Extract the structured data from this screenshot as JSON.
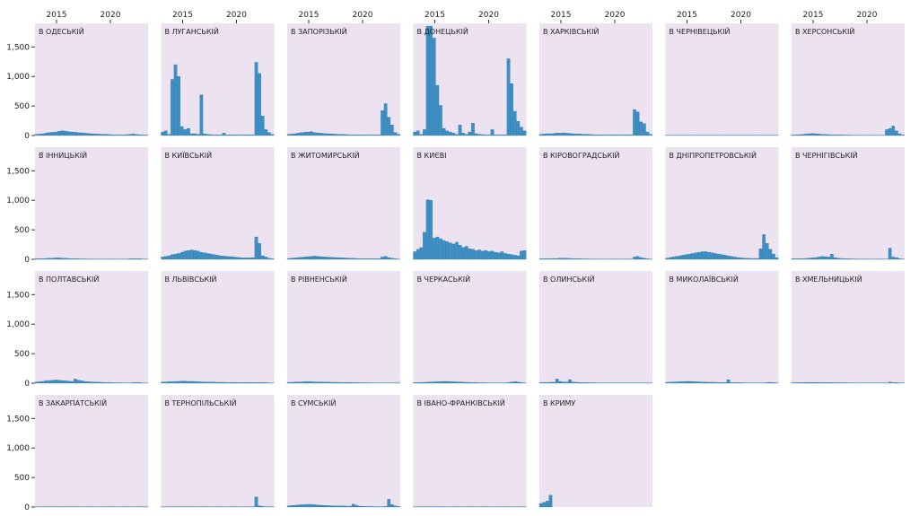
{
  "colors": {
    "panel_bg": "#ece2f0",
    "bar": "#3d8fc4",
    "bar_edge": "#1f6fa6",
    "axis": "#333333",
    "text": "#222222"
  },
  "chart_data": {
    "type": "bar",
    "layout": "small-multiples",
    "title": "",
    "xlabel": "",
    "ylabel": "",
    "x_ticks": [
      2015,
      2020
    ],
    "x_range": [
      2013,
      2023.5
    ],
    "y_ticks": [
      0,
      500,
      1000,
      1500
    ],
    "y_tick_labels": [
      "0",
      "500",
      "1,000",
      "1,500"
    ],
    "ylim": [
      0,
      1900
    ],
    "grid": false,
    "panels": [
      {
        "name": "В ОДЕСЬКІЙ",
        "values": [
          20,
          25,
          30,
          40,
          50,
          55,
          60,
          70,
          80,
          75,
          65,
          60,
          55,
          50,
          45,
          40,
          35,
          30,
          28,
          25,
          22,
          20,
          18,
          15,
          12,
          10,
          10,
          12,
          15,
          20,
          25,
          18,
          12,
          10,
          8
        ]
      },
      {
        "name": "В ЛУГАНСЬКІЙ",
        "values": [
          60,
          80,
          20,
          950,
          1200,
          1000,
          150,
          100,
          120,
          30,
          30,
          20,
          690,
          30,
          20,
          15,
          10,
          10,
          10,
          40,
          10,
          10,
          10,
          10,
          10,
          10,
          10,
          10,
          10,
          1240,
          1050,
          330,
          100,
          50,
          20
        ]
      },
      {
        "name": "В ЗАПОРІЗЬКІЙ",
        "values": [
          20,
          25,
          30,
          40,
          50,
          55,
          60,
          65,
          50,
          45,
          40,
          35,
          30,
          28,
          25,
          22,
          20,
          18,
          15,
          12,
          10,
          10,
          10,
          10,
          10,
          10,
          10,
          10,
          10,
          420,
          540,
          310,
          180,
          50,
          20
        ]
      },
      {
        "name": "В ДОНЕЦЬКІЙ",
        "values": [
          60,
          80,
          20,
          100,
          1850,
          1850,
          1650,
          850,
          510,
          120,
          80,
          60,
          40,
          20,
          180,
          40,
          20,
          60,
          210,
          30,
          20,
          15,
          10,
          10,
          100,
          10,
          10,
          10,
          10,
          1300,
          880,
          410,
          240,
          140,
          80
        ]
      },
      {
        "name": "В ХАРКІВСЬКІЙ",
        "values": [
          20,
          25,
          30,
          30,
          35,
          40,
          40,
          45,
          40,
          35,
          30,
          28,
          25,
          22,
          20,
          18,
          15,
          12,
          10,
          10,
          10,
          10,
          10,
          10,
          10,
          10,
          10,
          10,
          10,
          440,
          400,
          230,
          200,
          60,
          20
        ]
      },
      {
        "name": "В ЧЕРНІВЕЦЬКІЙ",
        "values": [
          5,
          5,
          5,
          5,
          5,
          5,
          5,
          5,
          5,
          5,
          5,
          5,
          5,
          5,
          5,
          5,
          5,
          5,
          5,
          5,
          5,
          5,
          5,
          5,
          5,
          5,
          5,
          5,
          5,
          5,
          5,
          5,
          5,
          5,
          5
        ]
      },
      {
        "name": "В ХЕРСОНСЬКІЙ",
        "values": [
          10,
          12,
          15,
          20,
          25,
          30,
          35,
          30,
          25,
          20,
          18,
          15,
          12,
          10,
          10,
          10,
          8,
          8,
          6,
          6,
          5,
          5,
          5,
          5,
          5,
          5,
          5,
          5,
          5,
          100,
          120,
          160,
          80,
          30,
          10
        ]
      },
      {
        "name": "В ІННИЦЬКІЙ",
        "values": [
          10,
          10,
          12,
          15,
          20,
          20,
          25,
          25,
          20,
          18,
          15,
          12,
          10,
          10,
          8,
          8,
          6,
          6,
          5,
          5,
          5,
          5,
          5,
          5,
          5,
          5,
          5,
          5,
          5,
          10,
          10,
          10,
          10,
          5,
          5
        ]
      },
      {
        "name": "В КИЇВСЬКІЙ",
        "values": [
          40,
          50,
          60,
          80,
          90,
          100,
          120,
          140,
          150,
          160,
          150,
          140,
          120,
          110,
          100,
          90,
          80,
          70,
          60,
          55,
          50,
          45,
          40,
          35,
          30,
          25,
          25,
          25,
          30,
          380,
          270,
          60,
          40,
          20,
          10
        ]
      },
      {
        "name": "В ЖИТОМИРСЬКІЙ",
        "values": [
          15,
          20,
          25,
          30,
          35,
          40,
          45,
          50,
          55,
          50,
          45,
          40,
          38,
          35,
          32,
          30,
          28,
          25,
          22,
          20,
          18,
          15,
          12,
          10,
          10,
          10,
          10,
          10,
          10,
          40,
          50,
          30,
          20,
          10,
          5
        ]
      },
      {
        "name": "В КИЄВІ",
        "values": [
          130,
          170,
          200,
          460,
          1010,
          1000,
          360,
          380,
          350,
          320,
          300,
          280,
          260,
          290,
          240,
          200,
          220,
          180,
          170,
          150,
          160,
          140,
          150,
          130,
          140,
          120,
          110,
          130,
          100,
          90,
          80,
          70,
          60,
          140,
          150
        ]
      },
      {
        "name": "В КІРОВОГРАДСЬКІЙ",
        "values": [
          10,
          10,
          12,
          12,
          15,
          15,
          18,
          20,
          18,
          15,
          12,
          10,
          10,
          8,
          8,
          6,
          6,
          5,
          5,
          5,
          5,
          5,
          5,
          5,
          5,
          5,
          5,
          5,
          5,
          40,
          50,
          30,
          20,
          10,
          5
        ]
      },
      {
        "name": "В ДНІПРОПЕТРОВСЬКІЙ",
        "values": [
          20,
          30,
          40,
          50,
          60,
          70,
          80,
          90,
          100,
          110,
          120,
          130,
          130,
          120,
          110,
          100,
          90,
          80,
          70,
          60,
          50,
          40,
          30,
          25,
          20,
          18,
          15,
          15,
          15,
          180,
          420,
          270,
          170,
          90,
          30
        ]
      },
      {
        "name": "В ЧЕРНІГІВСЬКІЙ",
        "values": [
          10,
          10,
          12,
          12,
          15,
          20,
          25,
          30,
          40,
          50,
          45,
          40,
          90,
          30,
          20,
          15,
          10,
          10,
          8,
          8,
          6,
          5,
          5,
          5,
          5,
          5,
          5,
          5,
          5,
          5,
          190,
          40,
          30,
          15,
          5
        ]
      },
      {
        "name": "В ПОЛТАВСЬКІЙ",
        "values": [
          20,
          25,
          30,
          40,
          45,
          50,
          55,
          50,
          45,
          40,
          35,
          30,
          70,
          50,
          40,
          30,
          25,
          22,
          20,
          18,
          15,
          12,
          10,
          10,
          8,
          8,
          6,
          6,
          5,
          5,
          10,
          10,
          10,
          5,
          5
        ]
      },
      {
        "name": "В ЛЬВІВСЬКІЙ",
        "values": [
          20,
          20,
          25,
          25,
          30,
          30,
          35,
          35,
          30,
          30,
          28,
          25,
          22,
          20,
          20,
          18,
          18,
          15,
          15,
          15,
          12,
          12,
          10,
          10,
          10,
          10,
          10,
          10,
          10,
          10,
          10,
          10,
          10,
          5,
          5
        ]
      },
      {
        "name": "В РІВНЕНСЬКІЙ",
        "values": [
          15,
          15,
          18,
          20,
          22,
          25,
          25,
          25,
          22,
          20,
          20,
          18,
          18,
          16,
          15,
          15,
          14,
          12,
          12,
          10,
          10,
          10,
          8,
          8,
          8,
          6,
          6,
          6,
          5,
          5,
          5,
          5,
          5,
          5,
          5
        ]
      },
      {
        "name": "В ЧЕРКАСЬКІЙ",
        "values": [
          10,
          10,
          12,
          15,
          18,
          20,
          22,
          25,
          28,
          30,
          30,
          28,
          25,
          22,
          20,
          18,
          15,
          12,
          10,
          10,
          8,
          8,
          6,
          5,
          5,
          5,
          5,
          5,
          5,
          10,
          20,
          25,
          20,
          10,
          5
        ]
      },
      {
        "name": "В ОЛИНСЬКІЙ",
        "values": [
          10,
          10,
          10,
          15,
          15,
          70,
          30,
          20,
          20,
          60,
          20,
          15,
          10,
          10,
          10,
          8,
          8,
          6,
          6,
          5,
          5,
          5,
          5,
          5,
          5,
          5,
          5,
          5,
          5,
          5,
          5,
          5,
          5,
          5,
          5
        ]
      },
      {
        "name": "В МИКОЛАЇВСЬКІЙ",
        "values": [
          15,
          18,
          20,
          22,
          25,
          28,
          30,
          30,
          28,
          25,
          22,
          20,
          18,
          16,
          15,
          14,
          12,
          12,
          12,
          60,
          10,
          10,
          8,
          8,
          6,
          6,
          6,
          5,
          5,
          5,
          5,
          10,
          15,
          10,
          5
        ]
      },
      {
        "name": "В ХМЕЛЬНИЦЬКІЙ",
        "values": [
          8,
          8,
          10,
          10,
          12,
          12,
          12,
          12,
          12,
          10,
          10,
          10,
          10,
          8,
          8,
          8,
          8,
          6,
          6,
          6,
          5,
          5,
          5,
          5,
          5,
          5,
          5,
          5,
          5,
          5,
          20,
          10,
          10,
          5,
          5
        ]
      },
      {
        "name": "В ЗАКАРПАТСЬКІЙ",
        "values": [
          5,
          5,
          5,
          6,
          6,
          6,
          6,
          6,
          6,
          6,
          5,
          5,
          5,
          5,
          5,
          5,
          5,
          5,
          5,
          5,
          5,
          5,
          5,
          5,
          5,
          5,
          5,
          5,
          5,
          5,
          5,
          5,
          5,
          5,
          5
        ]
      },
      {
        "name": "В ТЕРНОПІЛЬСЬКІЙ",
        "values": [
          5,
          5,
          5,
          6,
          6,
          6,
          6,
          6,
          6,
          6,
          5,
          5,
          5,
          5,
          5,
          5,
          5,
          5,
          5,
          5,
          5,
          5,
          5,
          5,
          5,
          5,
          5,
          5,
          5,
          170,
          20,
          10,
          5,
          5,
          5
        ]
      },
      {
        "name": "В СУМСЬКІЙ",
        "values": [
          20,
          25,
          30,
          35,
          40,
          40,
          45,
          45,
          40,
          35,
          30,
          28,
          25,
          22,
          20,
          20,
          18,
          18,
          15,
          15,
          50,
          30,
          15,
          10,
          10,
          8,
          8,
          6,
          6,
          5,
          10,
          130,
          40,
          20,
          10
        ]
      },
      {
        "name": "В ІВАНО-ФРАНКІВСЬКІЙ",
        "values": [
          5,
          5,
          5,
          6,
          6,
          6,
          6,
          6,
          6,
          6,
          5,
          5,
          5,
          5,
          5,
          5,
          5,
          5,
          5,
          5,
          5,
          5,
          5,
          5,
          5,
          5,
          5,
          5,
          5,
          5,
          5,
          5,
          5,
          5,
          5
        ]
      },
      {
        "name": "В КРИМУ",
        "values": [
          60,
          80,
          100,
          200,
          0,
          0,
          0,
          0,
          0,
          0,
          0,
          0,
          0,
          0,
          0,
          0,
          0,
          0,
          0,
          0,
          0,
          0,
          0,
          0,
          0,
          0,
          0,
          0,
          0,
          0,
          0,
          0,
          0,
          0,
          0
        ]
      }
    ]
  }
}
